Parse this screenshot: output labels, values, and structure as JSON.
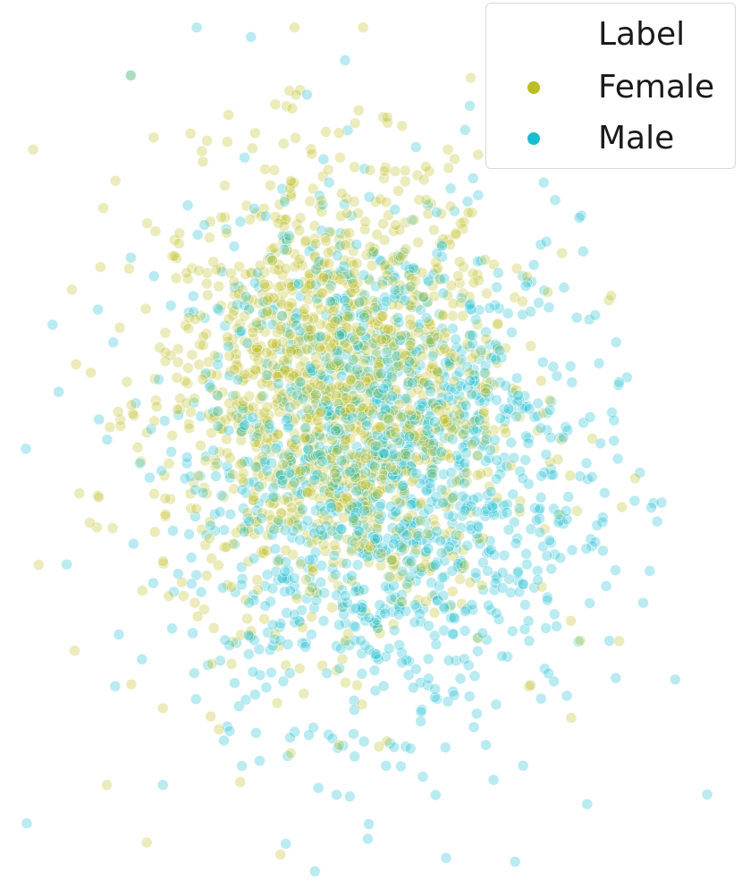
{
  "chart_data": {
    "type": "scatter",
    "title": "",
    "xlabel": "",
    "ylabel": "",
    "grid": false,
    "axes_visible": false,
    "xlim": [
      -4.5,
      4.5
    ],
    "ylim": [
      -4.5,
      4.5
    ],
    "legend": {
      "title": "Label",
      "placement": "top-right",
      "entries": [
        {
          "name": "Female",
          "color": "#bcbd22"
        },
        {
          "name": "Male",
          "color": "#17becf"
        }
      ]
    },
    "marker_alpha": 0.3,
    "series": [
      {
        "name": "Female",
        "color": "#bcbd22",
        "center": [
          -0.5,
          0.6
        ],
        "spread": [
          1.1,
          1.2
        ],
        "points": [
          [
            -3.0,
            3.9
          ],
          [
            -2.1,
            3.0
          ],
          [
            -1.0,
            2.8
          ],
          [
            -0.4,
            3.3
          ],
          [
            0.3,
            2.9
          ],
          [
            -3.3,
            -3.5
          ],
          [
            -2.8,
            -4.1
          ],
          [
            -3.5,
            0.8
          ],
          [
            -3.7,
            -2.1
          ],
          [
            -3.4,
            -0.5
          ],
          [
            3.0,
            1.6
          ],
          [
            3.3,
            -0.3
          ],
          [
            3.1,
            -2.0
          ],
          [
            2.5,
            -2.8
          ],
          [
            -2.6,
            -2.7
          ],
          [
            -1.9,
            1.7
          ],
          [
            0.9,
            1.4
          ],
          [
            1.1,
            -0.9
          ],
          [
            -2.2,
            -1.6
          ],
          [
            0.1,
            -3.1
          ]
        ]
      },
      {
        "name": "Male",
        "color": "#17becf",
        "center": [
          0.2,
          -0.2
        ],
        "spread": [
          1.2,
          1.3
        ],
        "points": [
          [
            -1.5,
            4.3
          ],
          [
            -3.0,
            3.9
          ],
          [
            -0.8,
            3.7
          ],
          [
            2.3,
            2.6
          ],
          [
            4.2,
            -3.6
          ],
          [
            -4.3,
            -3.9
          ],
          [
            -3.8,
            -1.2
          ],
          [
            -3.0,
            2.0
          ],
          [
            -2.6,
            -3.5
          ],
          [
            -0.7,
            -4.4
          ],
          [
            1.8,
            -4.3
          ],
          [
            2.8,
            1.4
          ],
          [
            3.1,
            0.7
          ],
          [
            1.9,
            -3.3
          ],
          [
            2.7,
            -3.7
          ],
          [
            3.4,
            -1.6
          ],
          [
            -3.9,
            0.6
          ],
          [
            -2.5,
            1.5
          ],
          [
            0.8,
            -2.5
          ],
          [
            3.8,
            -2.4
          ]
        ]
      }
    ]
  }
}
